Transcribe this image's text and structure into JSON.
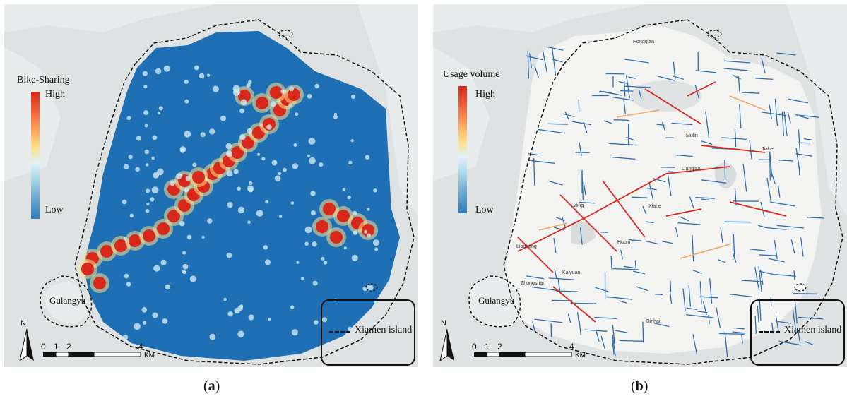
{
  "panel_a": {
    "legend_title": "Bike-Sharing",
    "legend_high": "High",
    "legend_low": "Low",
    "island_label": "Gulangyu",
    "boundary_legend": "Xiamen island",
    "north": "N",
    "scale_ticks": [
      "0",
      "1",
      "2",
      "4"
    ],
    "scale_unit": "KM",
    "caption_open": "(",
    "caption_letter": "a",
    "caption_close": ")",
    "colors": {
      "high": "#d7281b",
      "low": "#2b7bba",
      "mid": "#fee08b"
    }
  },
  "panel_b": {
    "legend_title": "Usage volume",
    "legend_high": "High",
    "legend_low": "Low",
    "island_label": "Gulangyu",
    "boundary_legend": "Xiamen island",
    "north": "N",
    "scale_ticks": [
      "0",
      "1",
      "2",
      "4"
    ],
    "scale_unit": "KM",
    "caption_open": "(",
    "caption_letter": "b",
    "caption_close": ")",
    "places": [
      "Hongqian",
      "Mulin",
      "Lianqian",
      "Jiahe",
      "Lvling",
      "Lianbang",
      "Xiahe",
      "Hubin",
      "Zhongshan",
      "Kaiyuan",
      "Binhai"
    ],
    "colors": {
      "road_low": "#2f6fb0",
      "road_high": "#d7281b",
      "road_mid": "#f4a460"
    }
  }
}
